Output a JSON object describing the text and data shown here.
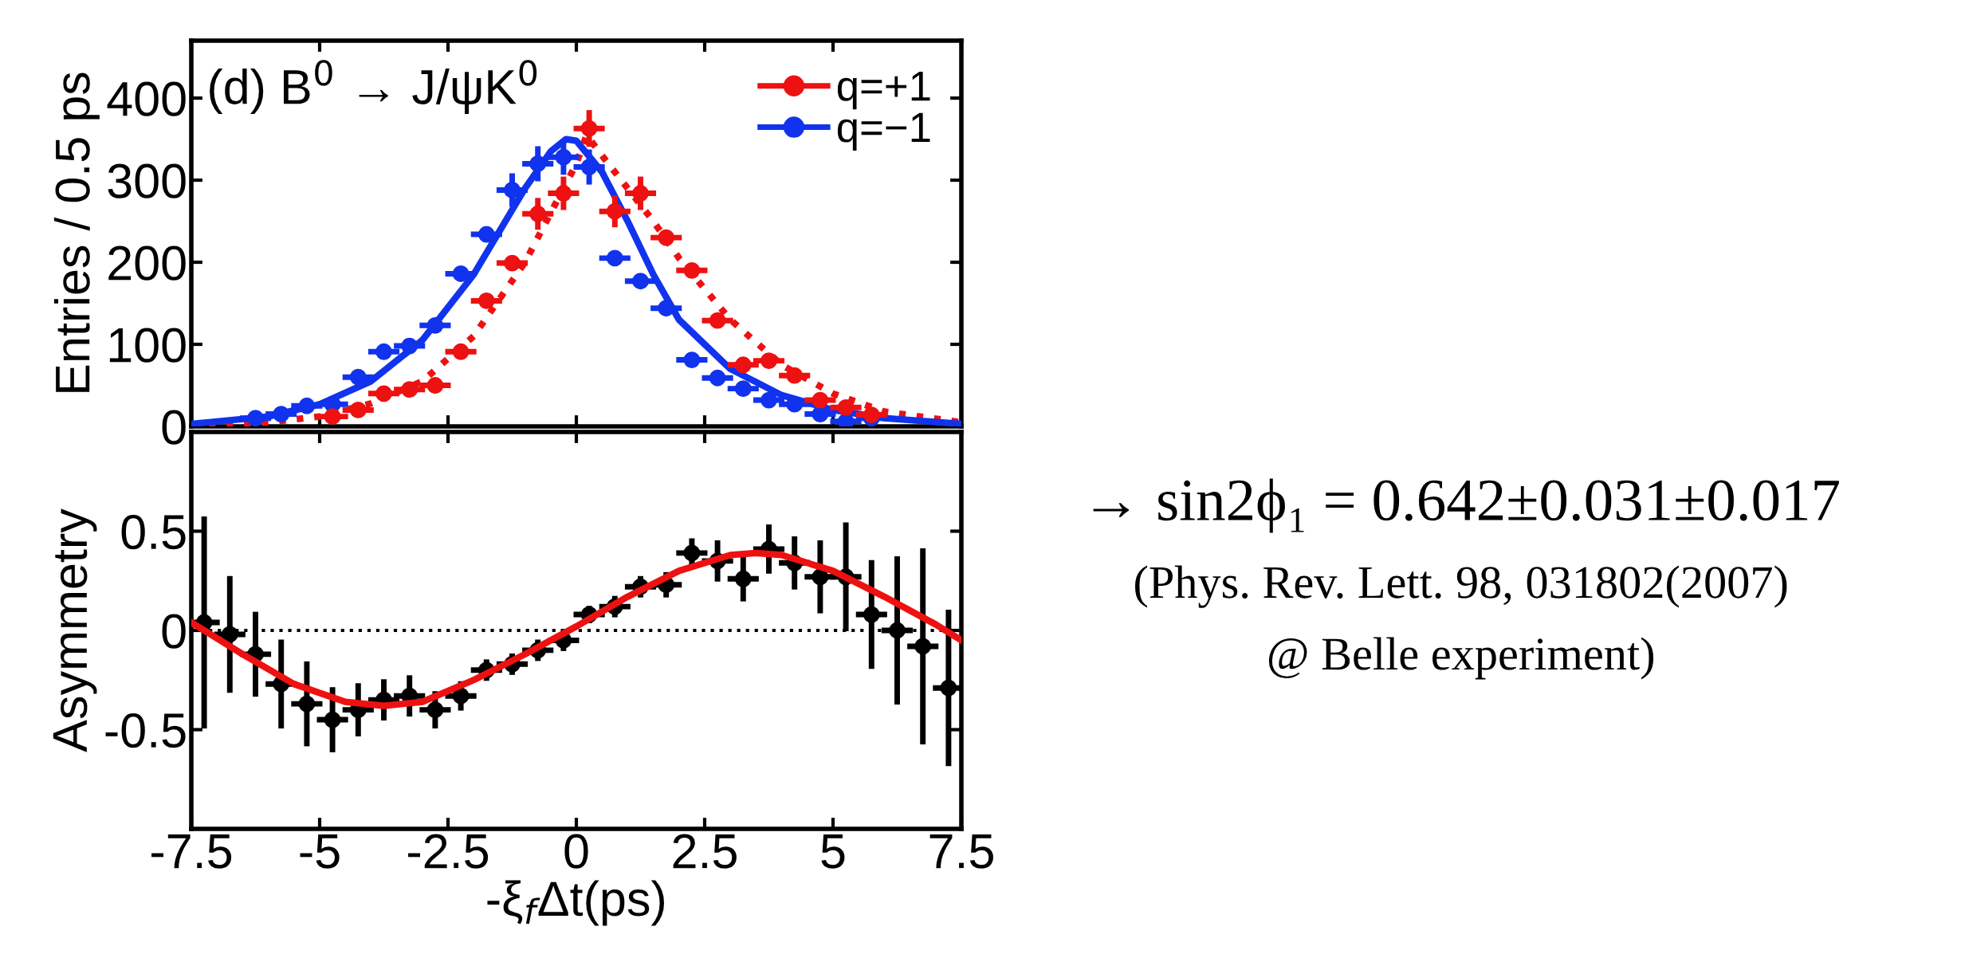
{
  "chart_data": [
    {
      "type": "scatter",
      "title": "(d) B$^{0}$ → J/ψK$^{0}$",
      "ylabel": "Entries / 0.5 ps",
      "xlim": [
        -7.5,
        7.5
      ],
      "xticks": [
        -7.5,
        -5,
        -2.5,
        0,
        2.5,
        5,
        7.5
      ],
      "ylim": [
        0,
        470
      ],
      "yticks": [
        0,
        100,
        200,
        300,
        400
      ],
      "tick_labels": "y",
      "legend": "top right",
      "series": [
        {
          "color": "#ee1111",
          "type": "line",
          "marker": "none",
          "line_style": "dotted",
          "x": [
            -7.5,
            -6,
            -5,
            -4,
            -3,
            -2,
            -1,
            -0.5,
            0,
            0.2,
            0.5,
            1,
            1.5,
            2,
            3,
            4,
            5,
            6,
            7.5
          ],
          "values": [
            1,
            5,
            12,
            28,
            55,
            110,
            200,
            260,
            320,
            355,
            330,
            290,
            250,
            205,
            130,
            75,
            40,
            18,
            5
          ]
        },
        {
          "color": "#1133ee",
          "type": "line",
          "marker": "none",
          "line_style": "solid",
          "x": [
            -7.5,
            -6,
            -5,
            -4,
            -3,
            -2,
            -1,
            -0.5,
            -0.2,
            0,
            0.5,
            1,
            1.5,
            2,
            3,
            4,
            5,
            6,
            7.5
          ],
          "values": [
            3,
            12,
            27,
            55,
            105,
            185,
            290,
            335,
            350,
            348,
            310,
            250,
            185,
            130,
            70,
            38,
            20,
            10,
            3
          ]
        },
        {
          "name": "q=−1",
          "color": "#1133ee",
          "marker": "circle",
          "x": [
            -6.25,
            -5.75,
            -5.25,
            -4.75,
            -4.25,
            -3.75,
            -3.25,
            -2.75,
            -2.25,
            -1.75,
            -1.25,
            -0.75,
            -0.25,
            0.25,
            0.75,
            1.25,
            1.75,
            2.25,
            2.75,
            3.25,
            3.75,
            4.25,
            4.75,
            5.25,
            5.75
          ],
          "values": [
            10,
            15,
            25,
            27,
            60,
            91,
            98,
            123,
            186,
            234,
            288,
            320,
            328,
            316,
            205,
            177,
            144,
            81,
            59,
            46,
            32,
            27,
            15,
            6,
            10
          ],
          "errors": [
            null,
            null,
            null,
            null,
            null,
            null,
            null,
            null,
            null,
            null,
            17,
            18,
            18,
            18,
            null,
            null,
            null,
            null,
            null,
            null,
            null,
            null,
            null,
            null,
            null
          ],
          "xerrors": [
            0.25,
            0.25,
            0.25,
            0.25,
            0.25,
            0.25,
            0.25,
            0.25,
            0.25,
            0.25,
            0.25,
            0.25,
            0.25,
            0.25,
            0.25,
            0.25,
            0.25,
            0.25,
            0.25,
            0.25,
            0.25,
            0.25,
            0.25,
            0.25,
            0.25
          ]
        },
        {
          "name": "q=+1",
          "color": "#ee1111",
          "marker": "circle",
          "x": [
            -4.75,
            -4.25,
            -3.75,
            -3.25,
            -2.75,
            -2.25,
            -1.75,
            -1.25,
            -0.75,
            -0.25,
            0.25,
            0.75,
            1.25,
            1.75,
            2.25,
            2.75,
            3.25,
            3.75,
            4.25,
            4.75,
            5.25,
            5.75
          ],
          "values": [
            12,
            20,
            40,
            45,
            50,
            91,
            153,
            199,
            259,
            284,
            363,
            262,
            284,
            230,
            190,
            129,
            75,
            80,
            62,
            32,
            23,
            14
          ],
          "errors": [
            null,
            null,
            null,
            null,
            null,
            null,
            null,
            null,
            16,
            17,
            19,
            16,
            17,
            null,
            null,
            null,
            null,
            null,
            null,
            null,
            null,
            null
          ],
          "xerrors": [
            0.25,
            0.25,
            0.25,
            0.25,
            0.25,
            0.25,
            0.25,
            0.25,
            0.25,
            0.25,
            0.25,
            0.25,
            0.25,
            0.25,
            0.25,
            0.25,
            0.25,
            0.25,
            0.25,
            0.25,
            0.25,
            0.25
          ]
        }
      ]
    },
    {
      "type": "scatter",
      "xlabel": "-ξ$_{f}$Δt(ps)",
      "ylabel": "Asymmetry",
      "xlim": [
        -7.5,
        7.5
      ],
      "xticks": [
        -7.5,
        -5,
        -2.5,
        0,
        2.5,
        5,
        7.5
      ],
      "ylim": [
        -1,
        1
      ],
      "yticks": [
        {
          "value": -0.5,
          "label": "-0.5"
        },
        0,
        0.5
      ],
      "ref_lines": [
        {
          "axis": "y",
          "value": 0,
          "label": null,
          "color": "#000000",
          "line_style": "dotted"
        }
      ],
      "annotations": [
        "→ sin2ϕ₁ = 0.642±0.031±0.017",
        "(Phys. Rev. Lett. 98, 031802(2007)",
        "@ Belle experiment)"
      ],
      "series": [
        {
          "color": "#000000",
          "marker": "circle",
          "x": [
            -7.25,
            -6.75,
            -6.25,
            -5.75,
            -5.25,
            -4.75,
            -4.25,
            -3.75,
            -3.25,
            -2.75,
            -2.25,
            -1.75,
            -1.25,
            -0.75,
            -0.25,
            0.25,
            0.75,
            1.25,
            1.75,
            2.25,
            2.75,
            3.25,
            3.75,
            4.25,
            4.75,
            5.25,
            5.75,
            6.25,
            6.75,
            7.25
          ],
          "values": [
            0.04,
            -0.02,
            -0.12,
            -0.27,
            -0.37,
            -0.45,
            -0.4,
            -0.35,
            -0.33,
            -0.4,
            -0.33,
            -0.2,
            -0.17,
            -0.1,
            -0.05,
            0.08,
            0.12,
            0.22,
            0.23,
            0.39,
            0.35,
            0.26,
            0.41,
            0.34,
            0.27,
            0.27,
            0.08,
            0.0,
            -0.08,
            -0.29
          ],
          "errors": [
            0.52,
            0.28,
            0.2,
            0.21,
            0.2,
            0.15,
            0.12,
            0.09,
            0.09,
            0.08,
            0.06,
            0.04,
            0.04,
            0.04,
            0.04,
            0.03,
            0.04,
            0.04,
            0.05,
            0.06,
            0.09,
            0.1,
            0.11,
            0.12,
            0.17,
            0.26,
            0.26,
            0.36,
            0.48,
            0.38
          ],
          "xerrors": [
            0.25,
            0.25,
            0.25,
            0.25,
            0.25,
            0.25,
            0.25,
            0.25,
            0.25,
            0.25,
            0.25,
            0.25,
            0.25,
            0.25,
            0.25,
            0.25,
            0.25,
            0.25,
            0.25,
            0.25,
            0.25,
            0.25,
            0.25,
            0.25,
            0.25,
            0.25,
            0.25,
            0.25,
            0.25,
            0.25
          ]
        },
        {
          "color": "#ee1111",
          "type": "line",
          "marker": "none",
          "line_style": "solid",
          "x": [
            -7.5,
            -6.5,
            -5.5,
            -4.5,
            -3.75,
            -3,
            -2,
            -1,
            0,
            1,
            2,
            3,
            3.5,
            4,
            5,
            6,
            7,
            7.5
          ],
          "values": [
            0.04,
            -0.12,
            -0.27,
            -0.36,
            -0.38,
            -0.36,
            -0.25,
            -0.12,
            0.02,
            0.17,
            0.3,
            0.38,
            0.39,
            0.38,
            0.3,
            0.17,
            0.03,
            -0.05
          ]
        }
      ]
    }
  ]
}
